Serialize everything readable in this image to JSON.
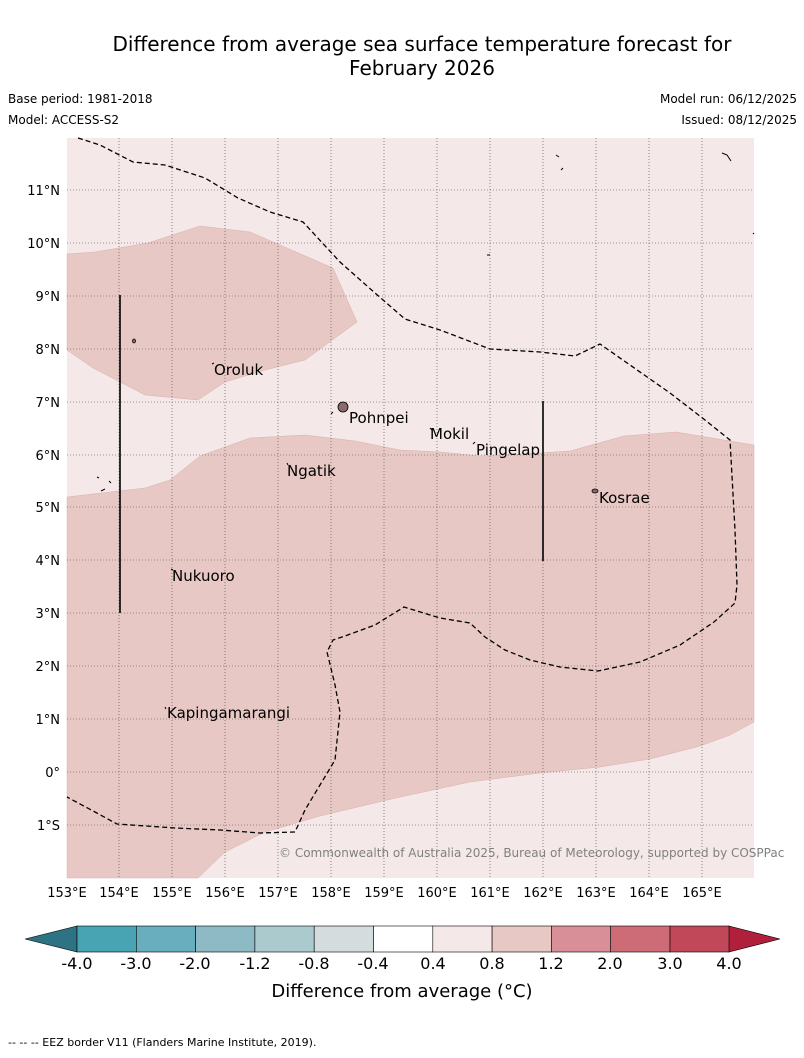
{
  "header": {
    "title_line1": "Difference from average sea surface temperature forecast for",
    "title_line2": "February 2026",
    "base_period": "Base period: 1981-2018",
    "model": "Model: ACCESS-S2",
    "model_run": "Model run: 06/12/2025",
    "issued": "Issued: 08/12/2025"
  },
  "map": {
    "lon_labels": [
      "153°E",
      "154°E",
      "155°E",
      "156°E",
      "157°E",
      "158°E",
      "159°E",
      "160°E",
      "161°E",
      "162°E",
      "163°E",
      "164°E",
      "165°E"
    ],
    "lat_labels": [
      "11°N",
      "10°N",
      "9°N",
      "8°N",
      "7°N",
      "6°N",
      "5°N",
      "4°N",
      "3°N",
      "2°N",
      "1°N",
      "0°",
      "1°S"
    ],
    "places": [
      "Oroluk",
      "Pohnpei",
      "Mokil",
      "Pingelap",
      "Ngatik",
      "Kosrae",
      "Nukuoro",
      "Kapingamarangi"
    ],
    "copyright": "© Commonwealth of Australia 2025, Bureau of Meteorology, supported by COSPPac",
    "colors": {
      "band_0_4_to_0_8": "#f5e8e8",
      "band_0_8_to_1_2": "#e8c8c4",
      "eez_line": "#000000"
    }
  },
  "colorbar": {
    "ticks": [
      "-4.0",
      "-3.0",
      "-2.0",
      "-1.2",
      "-0.8",
      "-0.4",
      "0.4",
      "0.8",
      "1.2",
      "2.0",
      "3.0",
      "4.0"
    ],
    "colors": [
      "#2e7383",
      "#48a3b3",
      "#69aebf",
      "#8dbac4",
      "#aacacd",
      "#d4dcdd",
      "#ffffff",
      "#f5e8e8",
      "#e8c8c4",
      "#d88f98",
      "#cd6c77",
      "#c04858",
      "#b0203a"
    ],
    "label": "Difference from average (°C)"
  },
  "footnote": "-- -- -- EEZ border V11 (Flanders Marine Institute, 2019)."
}
